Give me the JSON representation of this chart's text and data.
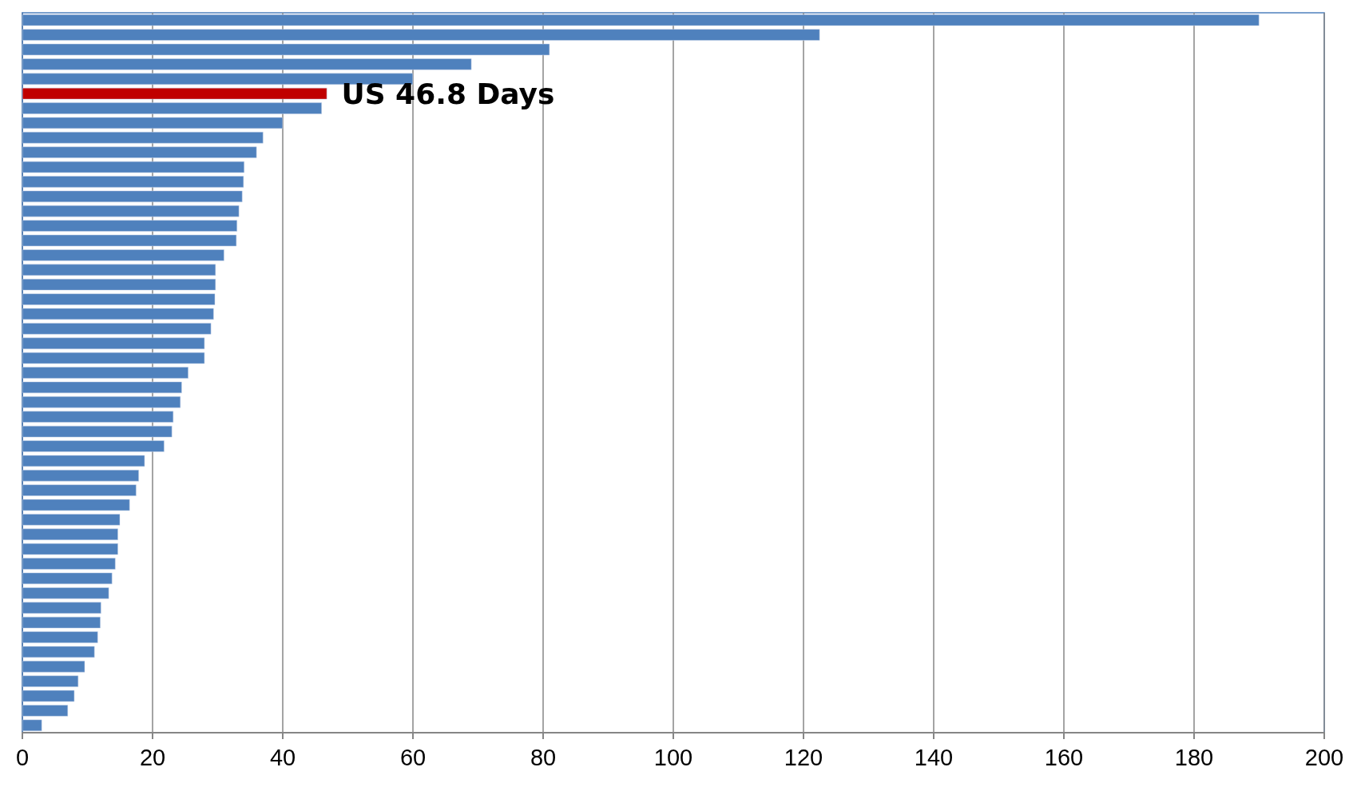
{
  "chart_data": {
    "type": "bar",
    "orientation": "horizontal",
    "categories": [
      null,
      null,
      null,
      null,
      null,
      null,
      null,
      null,
      null,
      null,
      null,
      null,
      null,
      null,
      null,
      null,
      null,
      null,
      null,
      null,
      null,
      null,
      null,
      null,
      null,
      null,
      null,
      null,
      null,
      null,
      null,
      null,
      null,
      null,
      null,
      null,
      null,
      null,
      null,
      null,
      null,
      null,
      null,
      null,
      null,
      null,
      null,
      null,
      null
    ],
    "values": [
      190,
      122.5,
      81,
      69,
      60,
      46.8,
      46,
      40,
      37,
      36,
      34.1,
      34,
      33.8,
      33.3,
      33,
      32.9,
      31,
      29.7,
      29.7,
      29.6,
      29.4,
      29,
      28,
      28,
      25.5,
      24.5,
      24.3,
      23.2,
      23,
      21.8,
      18.8,
      17.9,
      17.5,
      16.5,
      15,
      14.7,
      14.7,
      14.3,
      13.8,
      13.3,
      12.1,
      12,
      11.6,
      11.1,
      9.6,
      8.6,
      8,
      7,
      3
    ],
    "colors": [
      "#4f81bd",
      "#4f81bd",
      "#4f81bd",
      "#4f81bd",
      "#4f81bd",
      "#c00000",
      "#4f81bd",
      "#4f81bd",
      "#4f81bd",
      "#4f81bd",
      "#4f81bd",
      "#4f81bd",
      "#4f81bd",
      "#4f81bd",
      "#4f81bd",
      "#4f81bd",
      "#4f81bd",
      "#4f81bd",
      "#4f81bd",
      "#4f81bd",
      "#4f81bd",
      "#4f81bd",
      "#4f81bd",
      "#4f81bd",
      "#4f81bd",
      "#4f81bd",
      "#4f81bd",
      "#4f81bd",
      "#4f81bd",
      "#4f81bd",
      "#4f81bd",
      "#4f81bd",
      "#4f81bd",
      "#4f81bd",
      "#4f81bd",
      "#4f81bd",
      "#4f81bd",
      "#4f81bd",
      "#4f81bd",
      "#4f81bd",
      "#4f81bd",
      "#4f81bd",
      "#4f81bd",
      "#4f81bd",
      "#4f81bd",
      "#4f81bd",
      "#4f81bd",
      "#4f81bd",
      "#4f81bd"
    ],
    "value_labels": [
      null,
      null,
      null,
      null,
      null,
      "US 46.8 Days",
      null,
      null,
      null,
      null,
      null,
      null,
      null,
      null,
      null,
      null,
      null,
      null,
      null,
      null,
      null,
      null,
      null,
      null,
      null,
      null,
      null,
      null,
      null,
      null,
      null,
      null,
      null,
      null,
      null,
      null,
      null,
      null,
      null,
      null,
      null,
      null,
      null,
      null,
      null,
      null,
      null,
      null,
      null
    ],
    "xlim": [
      0,
      200
    ],
    "xticks": [
      0,
      20,
      40,
      60,
      80,
      100,
      120,
      140,
      160,
      180,
      200
    ],
    "grid": "x",
    "tick_labels": "x"
  }
}
